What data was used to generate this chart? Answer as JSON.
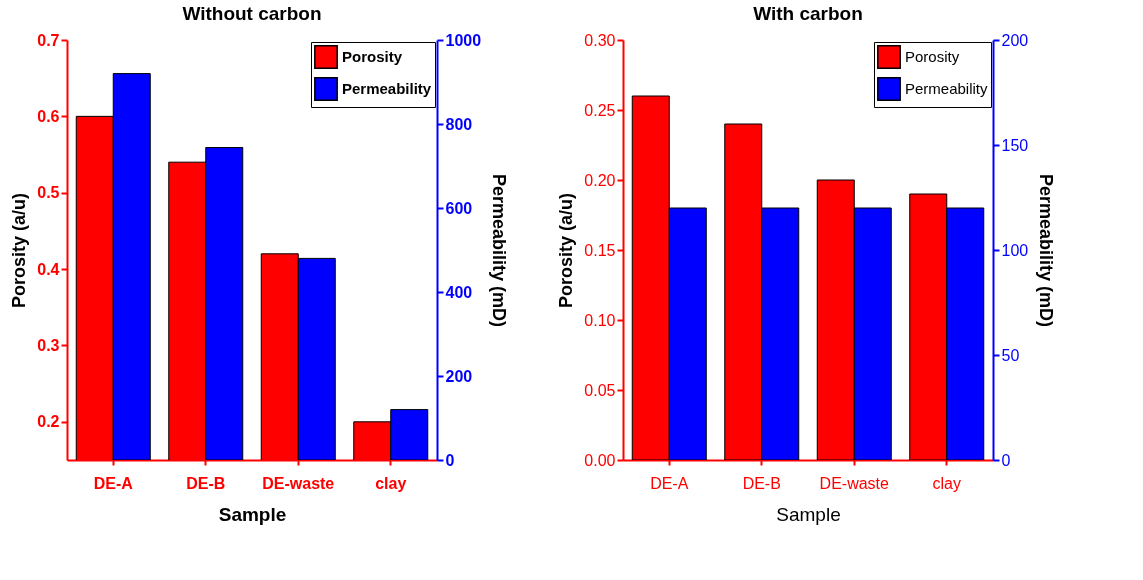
{
  "chart_data": [
    {
      "type": "bar",
      "title": "Without carbon",
      "xlabel": "Sample",
      "ylabel": "Porosity (a/u)",
      "y2label": "Permeability (mD)",
      "categories": [
        "DE-A",
        "DE-B",
        "DE-waste",
        "clay"
      ],
      "series": [
        {
          "name": "Porosity",
          "color": "#ff0000",
          "values": [
            0.6,
            0.54,
            0.42,
            0.2
          ]
        },
        {
          "name": "Permeability",
          "color": "#0000ff",
          "values": [
            920,
            744,
            480,
            120
          ],
          "axis": "y2"
        }
      ],
      "ylim": [
        0.15,
        0.7
      ],
      "yticks": [
        0.2,
        0.3,
        0.4,
        0.5,
        0.6,
        0.7
      ],
      "y2lim": [
        0,
        1000
      ],
      "y2ticks": [
        0,
        200,
        400,
        600,
        800,
        1000
      ],
      "legend": "top right"
    },
    {
      "type": "bar",
      "title": "With carbon",
      "xlabel": "Sample",
      "ylabel": "Porosity (a/u)",
      "y2label": "Permeability (mD)",
      "categories": [
        "DE-A",
        "DE-B",
        "DE-waste",
        "clay"
      ],
      "series": [
        {
          "name": "Porosity",
          "color": "#ff0000",
          "values": [
            0.26,
            0.24,
            0.2,
            0.19
          ]
        },
        {
          "name": "Permeability",
          "color": "#0000ff",
          "values": [
            120,
            120,
            120,
            120
          ],
          "axis": "y2"
        }
      ],
      "ylim": [
        0,
        0.3
      ],
      "yticks": [
        {
          "value": 0,
          "label": "0.00"
        },
        {
          "value": 0.05,
          "label": "0.05"
        },
        {
          "value": 0.1,
          "label": "0.10"
        },
        {
          "value": 0.15,
          "label": "0.15"
        },
        {
          "value": 0.2,
          "label": "0.20"
        },
        {
          "value": 0.25,
          "label": "0.25"
        },
        {
          "value": 0.3,
          "label": "0.30"
        }
      ],
      "y2lim": [
        0,
        200
      ],
      "y2ticks": [
        0,
        50,
        100,
        150,
        200
      ],
      "legend": "top right"
    }
  ]
}
